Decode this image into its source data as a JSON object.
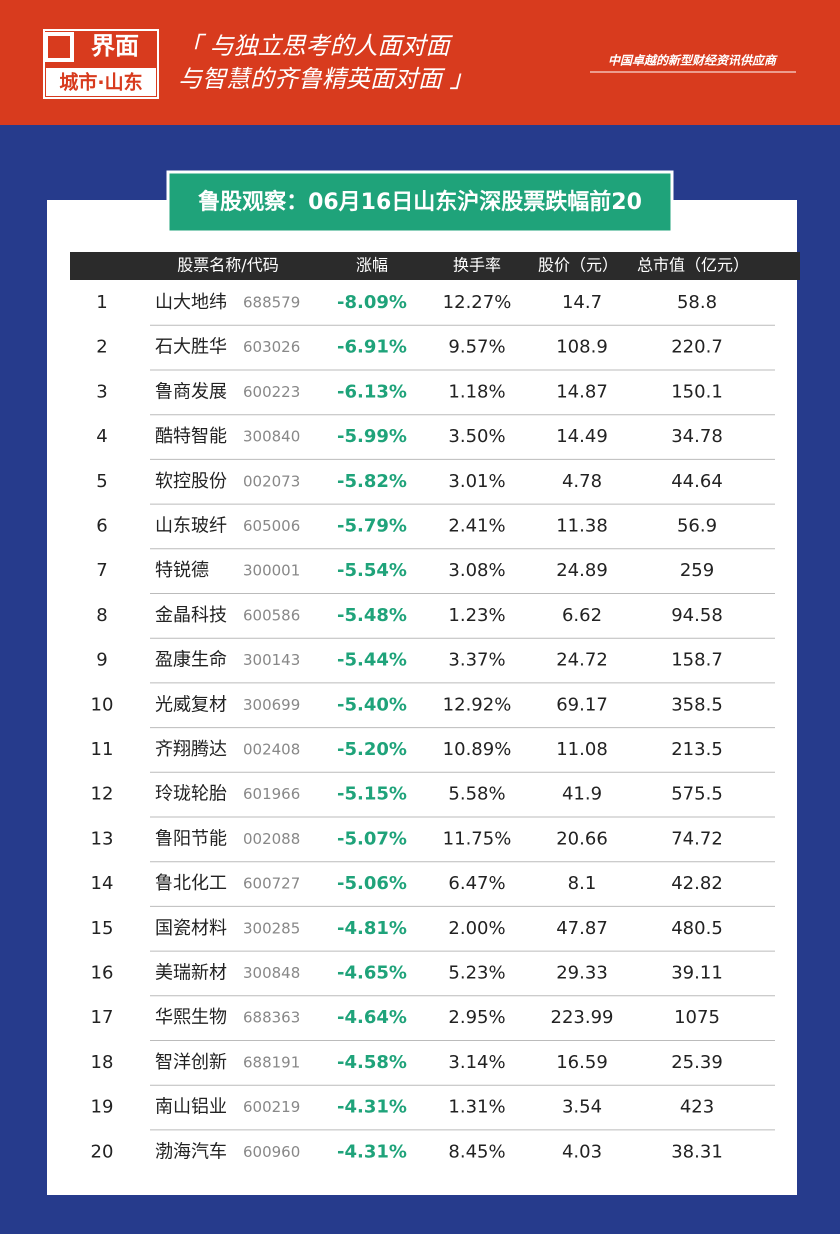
{
  "header": {
    "logo": "界面",
    "logo_sub": "城市·山东",
    "slogan": [
      "「 与独立思考的人面对面",
      "与智慧的齐鲁精英面对面 」"
    ],
    "tagline": "中国卓越的新型财经资讯供应商"
  },
  "title": "鲁股观察：06月16日山东沪深股票跌幅前20",
  "table": {
    "columns": [
      "股票名称/代码",
      "涨幅",
      "换手率",
      "股价（元）",
      "总市值（亿元）"
    ],
    "rows": [
      [
        "1",
        "山大地纬",
        "688579",
        "-8.09%",
        "12.27%",
        "14.7",
        "58.8"
      ],
      [
        "2",
        "石大胜华",
        "603026",
        "-6.91%",
        "9.57%",
        "108.9",
        "220.7"
      ],
      [
        "3",
        "鲁商发展",
        "600223",
        "-6.13%",
        "1.18%",
        "14.87",
        "150.1"
      ],
      [
        "4",
        "酷特智能",
        "300840",
        "-5.99%",
        "3.50%",
        "14.49",
        "34.78"
      ],
      [
        "5",
        "软控股份",
        "002073",
        "-5.82%",
        "3.01%",
        "4.78",
        "44.64"
      ],
      [
        "6",
        "山东玻纤",
        "605006",
        "-5.79%",
        "2.41%",
        "11.38",
        "56.9"
      ],
      [
        "7",
        "特锐德",
        "300001",
        "-5.54%",
        "3.08%",
        "24.89",
        "259"
      ],
      [
        "8",
        "金晶科技",
        "600586",
        "-5.48%",
        "1.23%",
        "6.62",
        "94.58"
      ],
      [
        "9",
        "盈康生命",
        "300143",
        "-5.44%",
        "3.37%",
        "24.72",
        "158.7"
      ],
      [
        "10",
        "光威复材",
        "300699",
        "-5.40%",
        "12.92%",
        "69.17",
        "358.5"
      ],
      [
        "11",
        "齐翔腾达",
        "002408",
        "-5.20%",
        "10.89%",
        "11.08",
        "213.5"
      ],
      [
        "12",
        "玲珑轮胎",
        "601966",
        "-5.15%",
        "5.58%",
        "41.9",
        "575.5"
      ],
      [
        "13",
        "鲁阳节能",
        "002088",
        "-5.07%",
        "11.75%",
        "20.66",
        "74.72"
      ],
      [
        "14",
        "鲁北化工",
        "600727",
        "-5.06%",
        "6.47%",
        "8.1",
        "42.82"
      ],
      [
        "15",
        "国瓷材料",
        "300285",
        "-4.81%",
        "2.00%",
        "47.87",
        "480.5"
      ],
      [
        "16",
        "美瑞新材",
        "300848",
        "-4.65%",
        "5.23%",
        "29.33",
        "39.11"
      ],
      [
        "17",
        "华熙生物",
        "688363",
        "-4.64%",
        "2.95%",
        "223.99",
        "1075"
      ],
      [
        "18",
        "智洋创新",
        "688191",
        "-4.58%",
        "3.14%",
        "16.59",
        "25.39"
      ],
      [
        "19",
        "南山铝业",
        "600219",
        "-4.31%",
        "1.31%",
        "3.54",
        "423"
      ],
      [
        "20",
        "渤海汽车",
        "600960",
        "-4.31%",
        "8.45%",
        "4.03",
        "38.31"
      ]
    ]
  }
}
